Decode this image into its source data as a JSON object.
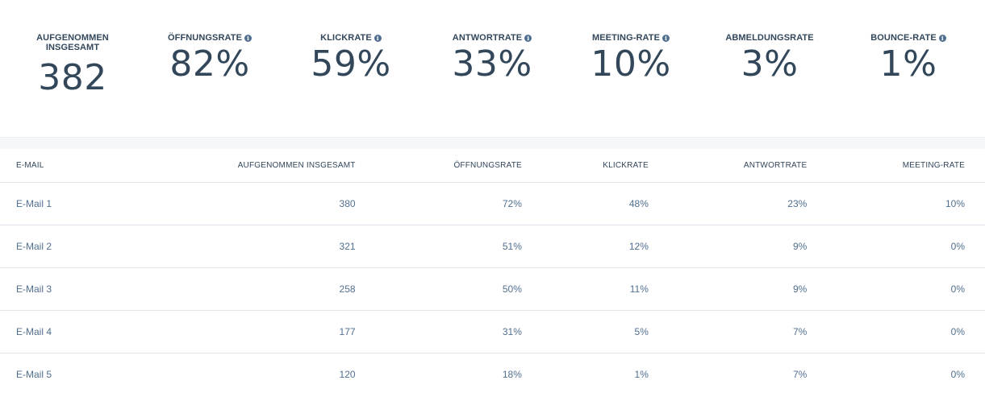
{
  "stats": [
    {
      "label": "AUFGENOMMEN INSGESAMT",
      "value": "382",
      "info": false
    },
    {
      "label": "ÖFFNUNGSRATE",
      "value": "82%",
      "info": true
    },
    {
      "label": "KLICKRATE",
      "value": "59%",
      "info": true
    },
    {
      "label": "ANTWORTRATE",
      "value": "33%",
      "info": true
    },
    {
      "label": "MEETING-RATE",
      "value": "10%",
      "info": true
    },
    {
      "label": "ABMELDUNGSRATE",
      "value": "3%",
      "info": false
    },
    {
      "label": "BOUNCE-RATE",
      "value": "1%",
      "info": true
    }
  ],
  "info_icon": {
    "glyph": "i",
    "icon": "info-icon"
  },
  "table": {
    "headers": [
      "E-MAIL",
      "AUFGENOMMEN INSGESAMT",
      "ÖFFNUNGSRATE",
      "KLICKRATE",
      "ANTWORTRATE",
      "MEETING-RATE"
    ],
    "rows": [
      [
        "E-Mail 1",
        "380",
        "72%",
        "48%",
        "23%",
        "10%"
      ],
      [
        "E-Mail 2",
        "321",
        "51%",
        "12%",
        "9%",
        "0%"
      ],
      [
        "E-Mail 3",
        "258",
        "50%",
        "11%",
        "9%",
        "0%"
      ],
      [
        "E-Mail 4",
        "177",
        "31%",
        "5%",
        "7%",
        "0%"
      ],
      [
        "E-Mail 5",
        "120",
        "18%",
        "1%",
        "7%",
        "0%"
      ]
    ]
  },
  "colors": {
    "text": "#33475b",
    "muted": "#516f90",
    "border": "#dfe3eb",
    "band": "#f5f8fa"
  }
}
